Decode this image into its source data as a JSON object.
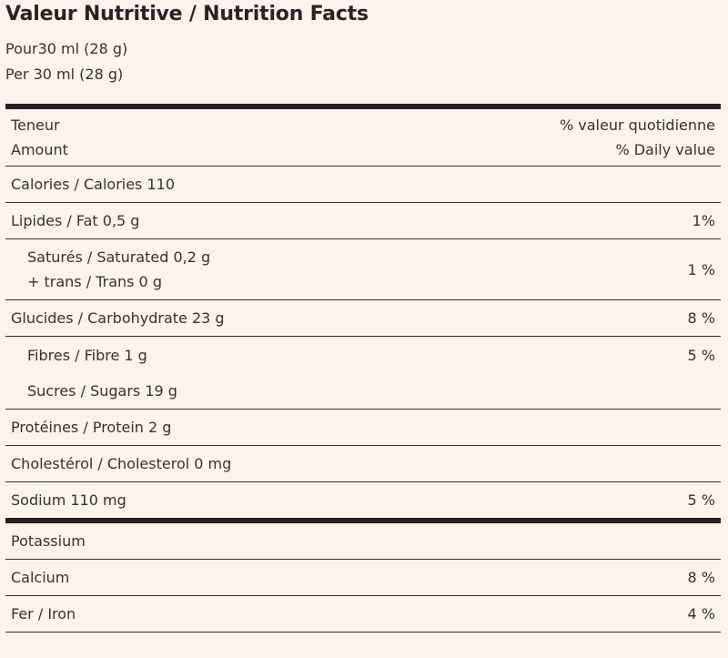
{
  "title": "Valeur Nutritive / Nutrition Facts",
  "serving_fr": "Pour30 ml (28 g)",
  "serving_en": "Per 30 ml (28 g)",
  "header": {
    "amount_fr": "Teneur",
    "amount_en": "Amount",
    "dv_fr": "% valeur quotidienne",
    "dv_en": "% Daily value"
  },
  "rows": {
    "calories": {
      "label": "Calories / Calories 110",
      "dv": ""
    },
    "fat": {
      "label": "Lipides / Fat 0,5 g",
      "dv": "1%"
    },
    "saturated": {
      "label": "Saturés / Saturated 0,2 g",
      "dv": "1 %"
    },
    "trans": {
      "label": "+ trans / Trans 0 g"
    },
    "carbohydrate": {
      "label": "Glucides / Carbohydrate 23 g",
      "dv": "8 %"
    },
    "fibre": {
      "label": "Fibres / Fibre 1 g",
      "dv": "5 %"
    },
    "sugars": {
      "label": "Sucres / Sugars 19 g"
    },
    "protein": {
      "label": "Protéines / Protein 2 g"
    },
    "cholesterol": {
      "label": "Cholestérol / Cholesterol 0 mg"
    },
    "sodium": {
      "label": "Sodium 110 mg",
      "dv": "5 %"
    },
    "potassium": {
      "label": "Potassium"
    },
    "calcium": {
      "label": "Calcium",
      "dv": "8 %"
    },
    "iron": {
      "label": "Fer / Iron",
      "dv": "4 %"
    }
  },
  "colors": {
    "background": "#fdf3ea",
    "text": "#3a3030",
    "rule": "#2b1f1f"
  }
}
